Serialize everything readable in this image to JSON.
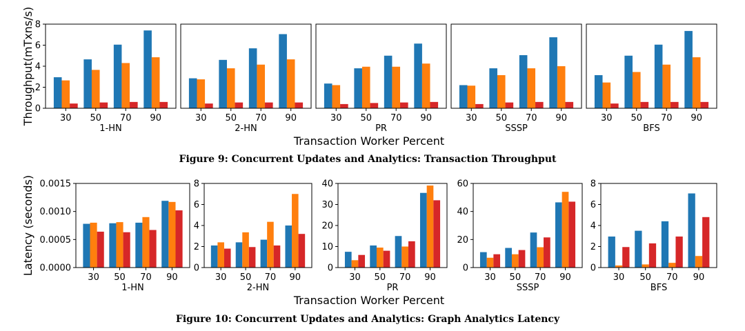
{
  "colors": {
    "s1": "#1f77b4",
    "s2": "#ff7f0e",
    "s3": "#d62728"
  },
  "figure9": {
    "caption": "Figure 9: Concurrent Updates and Analytics: Transaction Throughput",
    "ylabel": "Throughput(mTxns/s)",
    "xlabel": "Transaction Worker Percent"
  },
  "figure10": {
    "caption": "Figure 10: Concurrent Updates and Analytics: Graph Analytics Latency",
    "ylabel": "Latency (seconds)",
    "xlabel": "Transaction Worker Percent"
  },
  "chart_data": [
    {
      "figure": "figure9",
      "type": "bar",
      "group": "1-HN",
      "categories": [
        "30",
        "50",
        "70",
        "90"
      ],
      "ylim": [
        0,
        8
      ],
      "yticks": [
        "0",
        "2",
        "4",
        "6",
        "8"
      ],
      "series": [
        {
          "values": [
            2.95,
            4.65,
            6.05,
            7.4
          ]
        },
        {
          "values": [
            2.65,
            3.65,
            4.3,
            4.85
          ]
        },
        {
          "values": [
            0.45,
            0.55,
            0.6,
            0.6
          ]
        }
      ]
    },
    {
      "figure": "figure9",
      "type": "bar",
      "group": "2-HN",
      "categories": [
        "30",
        "50",
        "70",
        "90"
      ],
      "ylim": [
        0,
        8
      ],
      "yticks": [],
      "series": [
        {
          "values": [
            2.85,
            4.6,
            5.7,
            7.05
          ]
        },
        {
          "values": [
            2.75,
            3.8,
            4.15,
            4.65
          ]
        },
        {
          "values": [
            0.45,
            0.55,
            0.55,
            0.55
          ]
        }
      ]
    },
    {
      "figure": "figure9",
      "type": "bar",
      "group": "PR",
      "categories": [
        "30",
        "50",
        "70",
        "90"
      ],
      "ylim": [
        0,
        8
      ],
      "yticks": [],
      "series": [
        {
          "values": [
            2.35,
            3.8,
            5.0,
            6.15
          ]
        },
        {
          "values": [
            2.2,
            3.95,
            3.95,
            4.25
          ]
        },
        {
          "values": [
            0.4,
            0.5,
            0.55,
            0.6
          ]
        }
      ]
    },
    {
      "figure": "figure9",
      "type": "bar",
      "group": "SSSP",
      "categories": [
        "30",
        "50",
        "70",
        "90"
      ],
      "ylim": [
        0,
        8
      ],
      "yticks": [],
      "series": [
        {
          "values": [
            2.2,
            3.8,
            5.05,
            6.75
          ]
        },
        {
          "values": [
            2.15,
            3.15,
            3.8,
            4.0
          ]
        },
        {
          "values": [
            0.4,
            0.55,
            0.6,
            0.6
          ]
        }
      ]
    },
    {
      "figure": "figure9",
      "type": "bar",
      "group": "BFS",
      "categories": [
        "30",
        "50",
        "70",
        "90"
      ],
      "ylim": [
        0,
        8
      ],
      "yticks": [],
      "series": [
        {
          "values": [
            3.15,
            5.0,
            6.05,
            7.35
          ]
        },
        {
          "values": [
            2.45,
            3.45,
            4.15,
            4.85
          ]
        },
        {
          "values": [
            0.45,
            0.6,
            0.6,
            0.6
          ]
        }
      ]
    },
    {
      "figure": "figure10",
      "type": "bar",
      "group": "1-HN",
      "categories": [
        "30",
        "50",
        "70",
        "90"
      ],
      "ylim": [
        0,
        0.0015
      ],
      "yticks": [
        "0.0000",
        "0.0005",
        "0.0010",
        "0.0015"
      ],
      "series": [
        {
          "values": [
            0.00078,
            0.00079,
            0.0008,
            0.00119
          ]
        },
        {
          "values": [
            0.0008,
            0.00081,
            0.0009,
            0.00117
          ]
        },
        {
          "values": [
            0.00064,
            0.00063,
            0.00067,
            0.00102
          ]
        }
      ]
    },
    {
      "figure": "figure10",
      "type": "bar",
      "group": "2-HN",
      "categories": [
        "30",
        "50",
        "70",
        "90"
      ],
      "ylim": [
        0,
        8
      ],
      "yticks": [
        "0",
        "2",
        "4",
        "6",
        "8"
      ],
      "series": [
        {
          "values": [
            2.1,
            2.4,
            2.65,
            4.0
          ]
        },
        {
          "values": [
            2.4,
            3.35,
            4.35,
            7.0
          ]
        },
        {
          "values": [
            1.8,
            1.95,
            2.1,
            3.2
          ]
        }
      ]
    },
    {
      "figure": "figure10",
      "type": "bar",
      "group": "PR",
      "categories": [
        "30",
        "50",
        "70",
        "90"
      ],
      "ylim": [
        0,
        40
      ],
      "yticks": [
        "0",
        "10",
        "20",
        "30",
        "40"
      ],
      "series": [
        {
          "values": [
            7.5,
            10.5,
            15.0,
            35.5
          ]
        },
        {
          "values": [
            3.5,
            9.5,
            10.0,
            39.0
          ]
        },
        {
          "values": [
            6.0,
            8.0,
            12.5,
            32.0
          ]
        }
      ]
    },
    {
      "figure": "figure10",
      "type": "bar",
      "group": "SSSP",
      "categories": [
        "30",
        "50",
        "70",
        "90"
      ],
      "ylim": [
        0,
        60
      ],
      "yticks": [
        "0",
        "20",
        "40",
        "60"
      ],
      "series": [
        {
          "values": [
            11.0,
            14.0,
            25.0,
            46.5
          ]
        },
        {
          "values": [
            7.0,
            9.5,
            14.5,
            54.0
          ]
        },
        {
          "values": [
            9.5,
            12.5,
            21.5,
            47.0
          ]
        }
      ]
    },
    {
      "figure": "figure10",
      "type": "bar",
      "group": "BFS",
      "categories": [
        "30",
        "50",
        "70",
        "90"
      ],
      "ylim": [
        0,
        8
      ],
      "yticks": [
        "0",
        "2",
        "4",
        "6",
        "8"
      ],
      "series": [
        {
          "values": [
            2.95,
            3.5,
            4.4,
            7.05
          ]
        },
        {
          "values": [
            0.2,
            0.3,
            0.45,
            1.1
          ]
        },
        {
          "values": [
            1.95,
            2.3,
            2.95,
            4.8
          ]
        }
      ]
    }
  ]
}
